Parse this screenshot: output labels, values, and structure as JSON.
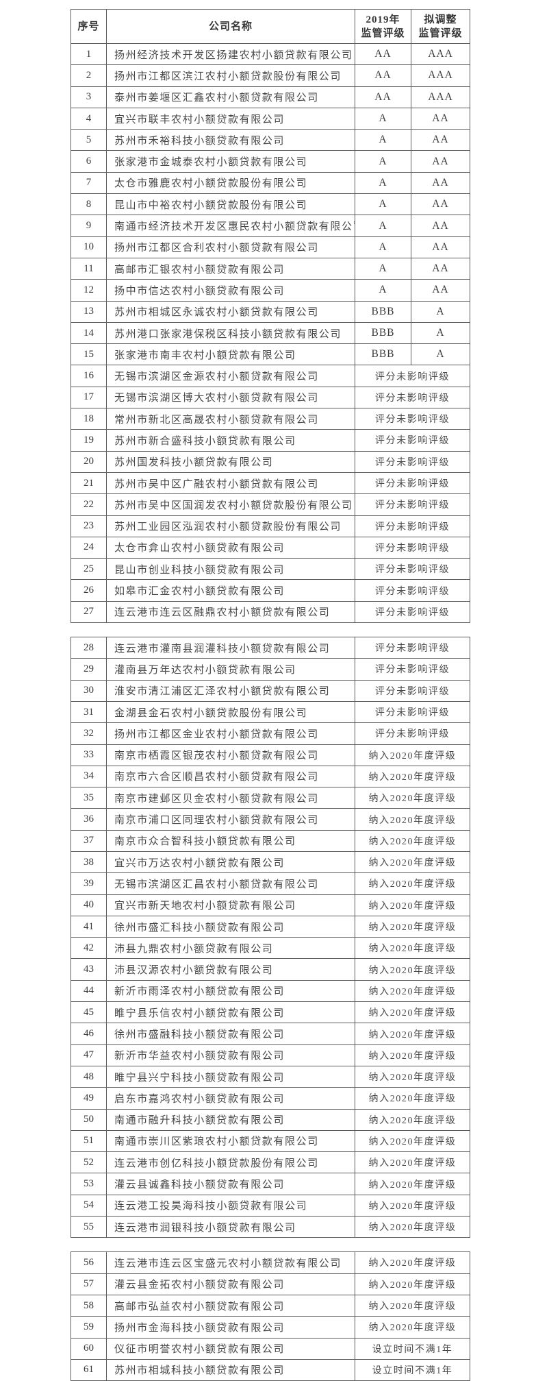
{
  "colors": {
    "background": "#ffffff",
    "text": "#3f3f3f",
    "border": "#5a5a5a"
  },
  "header": {
    "no": "序号",
    "company": "公司名称",
    "rating2019": [
      "2019年",
      "监管评级"
    ],
    "adjusted": [
      "拟调整",
      "监管评级"
    ]
  },
  "segments": [
    [
      0,
      26
    ],
    [
      27,
      54
    ],
    [
      55,
      60
    ]
  ],
  "rows": [
    {
      "no": "1",
      "name": "扬州经济技术开发区扬建农村小额贷款有限公司",
      "r2019": "AA",
      "adjusted": "AAA"
    },
    {
      "no": "2",
      "name": "扬州市江都区滨江农村小额贷款股份有限公司",
      "r2019": "AA",
      "adjusted": "AAA"
    },
    {
      "no": "3",
      "name": "泰州市姜堰区汇鑫农村小额贷款有限公司",
      "r2019": "AA",
      "adjusted": "AAA"
    },
    {
      "no": "4",
      "name": "宜兴市联丰农村小额贷款有限公司",
      "r2019": "A",
      "adjusted": "AA"
    },
    {
      "no": "5",
      "name": "苏州市禾裕科技小额贷款有限公司",
      "r2019": "A",
      "adjusted": "AA"
    },
    {
      "no": "6",
      "name": "张家港市金城泰农村小额贷款有限公司",
      "r2019": "A",
      "adjusted": "AA"
    },
    {
      "no": "7",
      "name": "太仓市雅鹿农村小额贷款股份有限公司",
      "r2019": "A",
      "adjusted": "AA"
    },
    {
      "no": "8",
      "name": "昆山市中裕农村小额贷款股份有限公司",
      "r2019": "A",
      "adjusted": "AA"
    },
    {
      "no": "9",
      "name": "南通市经济技术开发区惠民农村小额贷款有限公司",
      "r2019": "A",
      "adjusted": "AA"
    },
    {
      "no": "10",
      "name": "扬州市江都区合利农村小额贷款有限公司",
      "r2019": "A",
      "adjusted": "AA"
    },
    {
      "no": "11",
      "name": "高邮市汇银农村小额贷款有限公司",
      "r2019": "A",
      "adjusted": "AA"
    },
    {
      "no": "12",
      "name": "扬中市信达农村小额贷款有限公司",
      "r2019": "A",
      "adjusted": "AA"
    },
    {
      "no": "13",
      "name": "苏州市相城区永诚农村小额贷款有限公司",
      "r2019": "BBB",
      "adjusted": "A"
    },
    {
      "no": "14",
      "name": "苏州港口张家港保税区科技小额贷款有限公司",
      "r2019": "BBB",
      "adjusted": "A"
    },
    {
      "no": "15",
      "name": "张家港市南丰农村小额贷款有限公司",
      "r2019": "BBB",
      "adjusted": "A"
    },
    {
      "no": "16",
      "name": "无锡市滨湖区金源农村小额贷款有限公司",
      "merged": "评分未影响评级"
    },
    {
      "no": "17",
      "name": "无锡市滨湖区博大农村小额贷款有限公司",
      "merged": "评分未影响评级"
    },
    {
      "no": "18",
      "name": "常州市新北区高晟农村小额贷款有限公司",
      "merged": "评分未影响评级"
    },
    {
      "no": "19",
      "name": "苏州市新合盛科技小额贷款有限公司",
      "merged": "评分未影响评级"
    },
    {
      "no": "20",
      "name": "苏州国发科技小额贷款有限公司",
      "merged": "评分未影响评级"
    },
    {
      "no": "21",
      "name": "苏州市吴中区广融农村小额贷款有限公司",
      "merged": "评分未影响评级"
    },
    {
      "no": "22",
      "name": "苏州市吴中区国润发农村小额贷款股份有限公司",
      "merged": "评分未影响评级"
    },
    {
      "no": "23",
      "name": "苏州工业园区泓润农村小额贷款股份有限公司",
      "merged": "评分未影响评级"
    },
    {
      "no": "24",
      "name": "太仓市弇山农村小额贷款有限公司",
      "merged": "评分未影响评级"
    },
    {
      "no": "25",
      "name": "昆山市创业科技小额贷款有限公司",
      "merged": "评分未影响评级"
    },
    {
      "no": "26",
      "name": "如皋市汇金农村小额贷款有限公司",
      "merged": "评分未影响评级"
    },
    {
      "no": "27",
      "name": "连云港市连云区融鼎农村小额贷款有限公司",
      "merged": "评分未影响评级"
    },
    {
      "no": "28",
      "name": "连云港市灌南县润灌科技小额贷款有限公司",
      "merged": "评分未影响评级"
    },
    {
      "no": "29",
      "name": "灌南县万年达农村小额贷款有限公司",
      "merged": "评分未影响评级"
    },
    {
      "no": "30",
      "name": "淮安市清江浦区汇泽农村小额贷款有限公司",
      "merged": "评分未影响评级"
    },
    {
      "no": "31",
      "name": "金湖县金石农村小额贷款股份有限公司",
      "merged": "评分未影响评级"
    },
    {
      "no": "32",
      "name": "扬州市江都区金业农村小额贷款有限公司",
      "merged": "评分未影响评级"
    },
    {
      "no": "33",
      "name": "南京市栖霞区银茂农村小额贷款有限公司",
      "merged": "纳入2020年度评级"
    },
    {
      "no": "34",
      "name": "南京市六合区顺昌农村小额贷款有限公司",
      "merged": "纳入2020年度评级"
    },
    {
      "no": "35",
      "name": "南京市建邺区贝金农村小额贷款有限公司",
      "merged": "纳入2020年度评级"
    },
    {
      "no": "36",
      "name": "南京市浦口区同理农村小额贷款有限公司",
      "merged": "纳入2020年度评级"
    },
    {
      "no": "37",
      "name": "南京市众合智科技小额贷款有限公司",
      "merged": "纳入2020年度评级"
    },
    {
      "no": "38",
      "name": "宜兴市万达农村小额贷款有限公司",
      "merged": "纳入2020年度评级"
    },
    {
      "no": "39",
      "name": "无锡市滨湖区汇昌农村小额贷款有限公司",
      "merged": "纳入2020年度评级"
    },
    {
      "no": "40",
      "name": "宜兴市新天地农村小额贷款有限公司",
      "merged": "纳入2020年度评级"
    },
    {
      "no": "41",
      "name": "徐州市盛汇科技小额贷款有限公司",
      "merged": "纳入2020年度评级"
    },
    {
      "no": "42",
      "name": "沛县九鼎农村小额贷款有限公司",
      "merged": "纳入2020年度评级"
    },
    {
      "no": "43",
      "name": "沛县汉源农村小额贷款有限公司",
      "merged": "纳入2020年度评级"
    },
    {
      "no": "44",
      "name": "新沂市雨泽农村小额贷款有限公司",
      "merged": "纳入2020年度评级"
    },
    {
      "no": "45",
      "name": "睢宁县乐信农村小额贷款有限公司",
      "merged": "纳入2020年度评级"
    },
    {
      "no": "46",
      "name": "徐州市盛融科技小额贷款有限公司",
      "merged": "纳入2020年度评级"
    },
    {
      "no": "47",
      "name": "新沂市华益农村小额贷款有限公司",
      "merged": "纳入2020年度评级"
    },
    {
      "no": "48",
      "name": "睢宁县兴宁科技小额贷款有限公司",
      "merged": "纳入2020年度评级"
    },
    {
      "no": "49",
      "name": "启东市嘉鸿农村小额贷款有限公司",
      "merged": "纳入2020年度评级"
    },
    {
      "no": "50",
      "name": "南通市融升科技小额贷款有限公司",
      "merged": "纳入2020年度评级"
    },
    {
      "no": "51",
      "name": "南通市崇川区紫琅农村小额贷款有限公司",
      "merged": "纳入2020年度评级"
    },
    {
      "no": "52",
      "name": "连云港市创亿科技小额贷款股份有限公司",
      "merged": "纳入2020年度评级"
    },
    {
      "no": "53",
      "name": "灌云县诚鑫科技小额贷款有限公司",
      "merged": "纳入2020年度评级"
    },
    {
      "no": "54",
      "name": "连云港工投昊海科技小额贷款有限公司",
      "merged": "纳入2020年度评级"
    },
    {
      "no": "55",
      "name": "连云港市润银科技小额贷款有限公司",
      "merged": "纳入2020年度评级"
    },
    {
      "no": "56",
      "name": "连云港市连云区宝盛元农村小额贷款有限公司",
      "merged": "纳入2020年度评级"
    },
    {
      "no": "57",
      "name": "灌云县金拓农村小额贷款有限公司",
      "merged": "纳入2020年度评级"
    },
    {
      "no": "58",
      "name": "高邮市弘益农村小额贷款有限公司",
      "merged": "纳入2020年度评级"
    },
    {
      "no": "59",
      "name": "扬州市金海科技小额贷款有限公司",
      "merged": "纳入2020年度评级"
    },
    {
      "no": "60",
      "name": "仪征市明誉农村小额贷款有限公司",
      "merged": "设立时间不满1年"
    },
    {
      "no": "61",
      "name": "苏州市相城科技小额贷款有限公司",
      "merged": "设立时间不满1年"
    }
  ]
}
